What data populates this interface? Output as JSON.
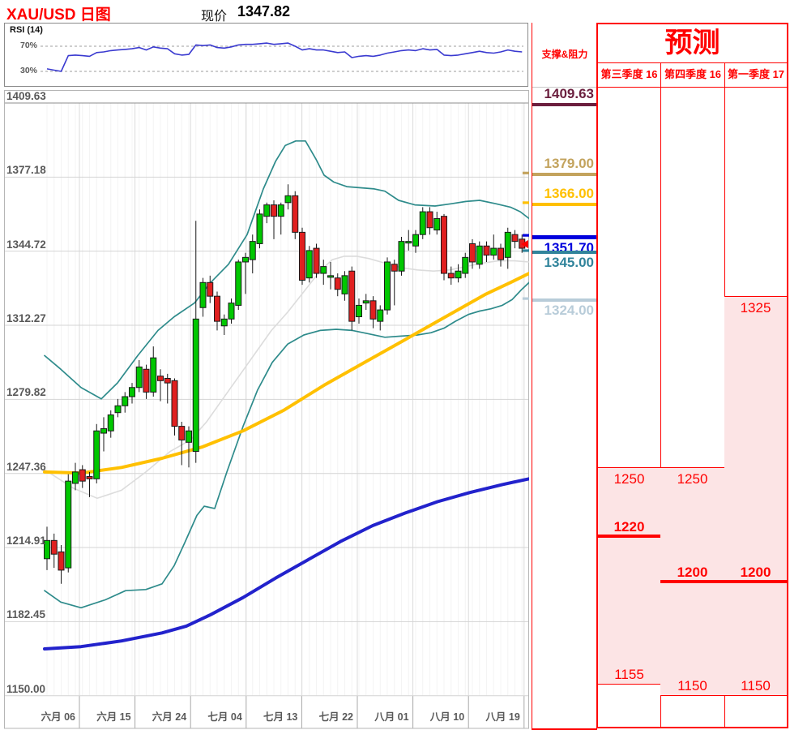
{
  "header": {
    "title": "XAU/USD 日图",
    "price_label": "现价",
    "price_value": "1347.82"
  },
  "rsi_panel": {
    "label": "RSI (14)",
    "upper_label": "70%",
    "lower_label": "30%"
  },
  "support_resistance": {
    "header": "支撑&阻力",
    "levels": [
      {
        "label": "1409.63",
        "price": 1409.63,
        "color": "#6B1F3E",
        "side": "above",
        "thick": 4
      },
      {
        "label": "1379.00",
        "price": 1379.0,
        "color": "#C3A35D",
        "side": "above",
        "thick": 4
      },
      {
        "label": "1366.00",
        "price": 1366.0,
        "color": "#FFC000",
        "side": "above",
        "thick": 4
      },
      {
        "label": "1351.70",
        "price": 1351.7,
        "color": "#0000DD",
        "side": "below",
        "thick": 5
      },
      {
        "label": "1345.00",
        "price": 1345.0,
        "color": "#31849B",
        "side": "below",
        "thick": 4
      },
      {
        "label": "1324.00",
        "price": 1324.0,
        "color": "#B8CCD9",
        "side": "below",
        "thick": 4
      }
    ]
  },
  "forecast": {
    "title": "预测",
    "zone_color": "#FCE4E5",
    "columns": [
      {
        "header": "第三季度 16",
        "zone_high": 1250,
        "zone_low": 1155,
        "high_label": "1250",
        "low_label": "1155",
        "key_label": "1220",
        "key_price": 1220
      },
      {
        "header": "第四季度 16",
        "zone_high": 1250,
        "zone_low": 1150,
        "high_label": "1250",
        "low_label": "1150",
        "key_label": "1200",
        "key_price": 1200
      },
      {
        "header": "第一季度 17",
        "zone_high": 1325,
        "zone_low": 1150,
        "high_label": "1325",
        "low_label": "1150",
        "key_label": "1200",
        "key_price": 1200
      }
    ]
  },
  "chart_data": {
    "type": "candlestick",
    "symbol": "XAU/USD",
    "timeframe": "日图",
    "current_price": 1347.82,
    "price_axis": {
      "min": 1150.0,
      "max": 1409.63,
      "ticks": [
        "1409.63",
        "1377.18",
        "1344.72",
        "1312.27",
        "1279.82",
        "1247.36",
        "1214.91",
        "1182.45",
        "1150.00"
      ]
    },
    "x_ticks": [
      "六月 06",
      "六月 15",
      "六月 24",
      "七月 04",
      "七月 13",
      "七月 22",
      "八月 01",
      "八月 10",
      "八月 19"
    ],
    "candles": [
      [
        1210,
        1224,
        1205,
        1218
      ],
      [
        1218,
        1221,
        1206,
        1212
      ],
      [
        1213,
        1216,
        1199,
        1205
      ],
      [
        1206,
        1247,
        1204,
        1244
      ],
      [
        1243,
        1252,
        1240,
        1248
      ],
      [
        1249,
        1251,
        1241,
        1244
      ],
      [
        1246,
        1248,
        1237,
        1245
      ],
      [
        1245,
        1269,
        1243,
        1266
      ],
      [
        1265,
        1272,
        1257,
        1267
      ],
      [
        1266,
        1275,
        1263,
        1273
      ],
      [
        1274,
        1280,
        1272,
        1277
      ],
      [
        1277,
        1283,
        1274,
        1281
      ],
      [
        1281,
        1287,
        1278,
        1285
      ],
      [
        1285,
        1297,
        1283,
        1294
      ],
      [
        1293,
        1295,
        1280,
        1283
      ],
      [
        1283,
        1303,
        1281,
        1298
      ],
      [
        1290,
        1293,
        1279,
        1288
      ],
      [
        1289,
        1291,
        1278,
        1287
      ],
      [
        1288,
        1289,
        1264,
        1268
      ],
      [
        1268,
        1270,
        1251,
        1262
      ],
      [
        1261,
        1268,
        1250,
        1266
      ],
      [
        1257,
        1358,
        1252,
        1315
      ],
      [
        1320,
        1333,
        1316,
        1331
      ],
      [
        1331,
        1334,
        1322,
        1325
      ],
      [
        1325,
        1327,
        1310,
        1314
      ],
      [
        1312,
        1317,
        1308,
        1315
      ],
      [
        1315,
        1324,
        1313,
        1322
      ],
      [
        1321,
        1341,
        1319,
        1340
      ],
      [
        1340,
        1344,
        1326,
        1342
      ],
      [
        1341,
        1352,
        1335,
        1349
      ],
      [
        1348,
        1363,
        1346,
        1361
      ],
      [
        1360,
        1366,
        1357,
        1365
      ],
      [
        1365,
        1367,
        1350,
        1360
      ],
      [
        1360,
        1366,
        1352,
        1365
      ],
      [
        1366,
        1374,
        1363,
        1369
      ],
      [
        1369,
        1371,
        1350,
        1353
      ],
      [
        1353,
        1355,
        1330,
        1332
      ],
      [
        1333,
        1347,
        1331,
        1345
      ],
      [
        1346,
        1348,
        1333,
        1335
      ],
      [
        1335,
        1341,
        1330,
        1338
      ],
      [
        1334,
        1340,
        1328,
        1334
      ],
      [
        1333,
        1335,
        1325,
        1328
      ],
      [
        1326,
        1336,
        1323,
        1334
      ],
      [
        1336,
        1338,
        1310,
        1314
      ],
      [
        1316,
        1324,
        1313,
        1321
      ],
      [
        1322,
        1326,
        1319,
        1323
      ],
      [
        1323,
        1325,
        1311,
        1315
      ],
      [
        1314,
        1321,
        1310,
        1319
      ],
      [
        1319,
        1342,
        1317,
        1340
      ],
      [
        1339,
        1341,
        1321,
        1336
      ],
      [
        1336,
        1351,
        1334,
        1349
      ],
      [
        1349,
        1354,
        1345,
        1349
      ],
      [
        1347,
        1354,
        1344,
        1352
      ],
      [
        1352,
        1364,
        1350,
        1362
      ],
      [
        1362,
        1364,
        1352,
        1355
      ],
      [
        1354,
        1362,
        1352,
        1359
      ],
      [
        1360,
        1361,
        1332,
        1335
      ],
      [
        1335,
        1338,
        1330,
        1333
      ],
      [
        1333,
        1339,
        1331,
        1336
      ],
      [
        1335,
        1344,
        1333,
        1342
      ],
      [
        1348,
        1350,
        1337,
        1340
      ],
      [
        1339,
        1349,
        1337,
        1347
      ],
      [
        1347,
        1349,
        1340,
        1343
      ],
      [
        1343,
        1352,
        1341,
        1346
      ],
      [
        1346,
        1348,
        1338,
        1341
      ],
      [
        1342,
        1355,
        1337,
        1353
      ],
      [
        1352,
        1354,
        1346,
        1349
      ],
      [
        1350,
        1352,
        1344,
        1346
      ]
    ],
    "overlays": {
      "bollinger_upper": [
        [
          55,
          1299
        ],
        [
          75,
          1293
        ],
        [
          100,
          1285
        ],
        [
          125,
          1280
        ],
        [
          145,
          1287
        ],
        [
          170,
          1299
        ],
        [
          195,
          1310
        ],
        [
          215,
          1316
        ],
        [
          240,
          1322
        ],
        [
          260,
          1331
        ],
        [
          282,
          1339
        ],
        [
          305,
          1352
        ],
        [
          325,
          1372
        ],
        [
          340,
          1384
        ],
        [
          352,
          1391
        ],
        [
          365,
          1393
        ],
        [
          377,
          1393
        ],
        [
          390,
          1385
        ],
        [
          400,
          1378
        ],
        [
          412,
          1375
        ],
        [
          428,
          1373
        ],
        [
          445,
          1372.5
        ],
        [
          462,
          1372
        ],
        [
          475,
          1371
        ],
        [
          492,
          1367
        ],
        [
          512,
          1365
        ],
        [
          537,
          1364.5
        ],
        [
          557,
          1365.5
        ],
        [
          575,
          1366.5
        ],
        [
          592,
          1367
        ],
        [
          612,
          1365.5
        ],
        [
          630,
          1364
        ],
        [
          642,
          1362
        ],
        [
          653,
          1359
        ]
      ],
      "bollinger_lower": [
        [
          55,
          1196
        ],
        [
          75,
          1191
        ],
        [
          100,
          1188.5
        ],
        [
          130,
          1192
        ],
        [
          155,
          1196
        ],
        [
          180,
          1196.5
        ],
        [
          200,
          1199
        ],
        [
          215,
          1207
        ],
        [
          228,
          1217
        ],
        [
          243,
          1229
        ],
        [
          252,
          1233
        ],
        [
          265,
          1232
        ],
        [
          280,
          1248
        ],
        [
          300,
          1268
        ],
        [
          318,
          1284
        ],
        [
          336,
          1296
        ],
        [
          355,
          1304
        ],
        [
          375,
          1308
        ],
        [
          395,
          1310
        ],
        [
          415,
          1310.5
        ],
        [
          435,
          1310
        ],
        [
          455,
          1308.5
        ],
        [
          475,
          1307
        ],
        [
          495,
          1307.5
        ],
        [
          515,
          1308
        ],
        [
          532,
          1309
        ],
        [
          548,
          1311
        ],
        [
          562,
          1314
        ],
        [
          578,
          1317
        ],
        [
          592,
          1318.5
        ],
        [
          606,
          1319.5
        ],
        [
          620,
          1321
        ],
        [
          632,
          1323.5
        ],
        [
          644,
          1328
        ],
        [
          653,
          1331
        ]
      ],
      "bollinger_mid": [
        [
          55,
          1249
        ],
        [
          90,
          1241
        ],
        [
          120,
          1236.5
        ],
        [
          150,
          1240
        ],
        [
          180,
          1248
        ],
        [
          210,
          1257
        ],
        [
          235,
          1262
        ],
        [
          255,
          1270
        ],
        [
          275,
          1280
        ],
        [
          295,
          1290
        ],
        [
          315,
          1300
        ],
        [
          335,
          1310
        ],
        [
          355,
          1318
        ],
        [
          375,
          1327
        ],
        [
          395,
          1336
        ],
        [
          410,
          1341
        ],
        [
          425,
          1342.5
        ],
        [
          440,
          1342.5
        ],
        [
          455,
          1341.5
        ],
        [
          475,
          1339.5
        ],
        [
          495,
          1337.5
        ],
        [
          515,
          1336.5
        ],
        [
          535,
          1336
        ],
        [
          555,
          1336.5
        ],
        [
          575,
          1338
        ],
        [
          595,
          1339.5
        ],
        [
          615,
          1340.5
        ],
        [
          635,
          1340.5
        ],
        [
          653,
          1340
        ]
      ],
      "sma_yellow": [
        [
          55,
          1248
        ],
        [
          100,
          1247.5
        ],
        [
          150,
          1250
        ],
        [
          200,
          1254
        ],
        [
          250,
          1259
        ],
        [
          300,
          1266
        ],
        [
          350,
          1275
        ],
        [
          400,
          1286
        ],
        [
          450,
          1296
        ],
        [
          500,
          1306
        ],
        [
          550,
          1316
        ],
        [
          600,
          1326
        ],
        [
          630,
          1331
        ],
        [
          653,
          1335
        ]
      ],
      "sma_blue": [
        [
          55,
          1170.5
        ],
        [
          100,
          1171.5
        ],
        [
          150,
          1174
        ],
        [
          200,
          1177.5
        ],
        [
          230,
          1180.5
        ],
        [
          260,
          1185.5
        ],
        [
          300,
          1193
        ],
        [
          340,
          1201.5
        ],
        [
          380,
          1209.5
        ],
        [
          420,
          1217.5
        ],
        [
          460,
          1224.5
        ],
        [
          500,
          1230
        ],
        [
          540,
          1235
        ],
        [
          580,
          1239
        ],
        [
          620,
          1242.5
        ],
        [
          653,
          1245
        ]
      ]
    },
    "rsi": {
      "upper": 70,
      "lower": 30,
      "values": [
        34,
        32,
        30,
        55,
        56,
        55,
        54,
        60,
        61,
        63,
        64,
        65,
        66,
        68,
        64,
        69,
        67,
        66,
        58,
        56,
        57,
        72,
        71,
        72,
        68,
        67,
        69,
        72,
        73,
        73,
        74,
        75,
        73,
        74,
        75,
        70,
        64,
        66,
        64,
        64,
        62,
        60,
        61,
        52,
        54,
        55,
        54,
        56,
        59,
        61,
        63,
        64,
        63,
        66,
        64,
        65,
        56,
        55,
        56,
        58,
        60,
        62,
        60,
        59,
        61,
        64,
        62,
        61
      ]
    },
    "colors": {
      "up": "#00C700",
      "down": "#E02020",
      "band": "#2E8B8B",
      "mid": "#DCDCDC",
      "yellow": "#FFC000",
      "blue": "#2222CC",
      "rsi_line": "#3A3AD0",
      "grid": "#D4D4D4",
      "axis_text": "#595959",
      "marker": "#FF0000"
    }
  }
}
